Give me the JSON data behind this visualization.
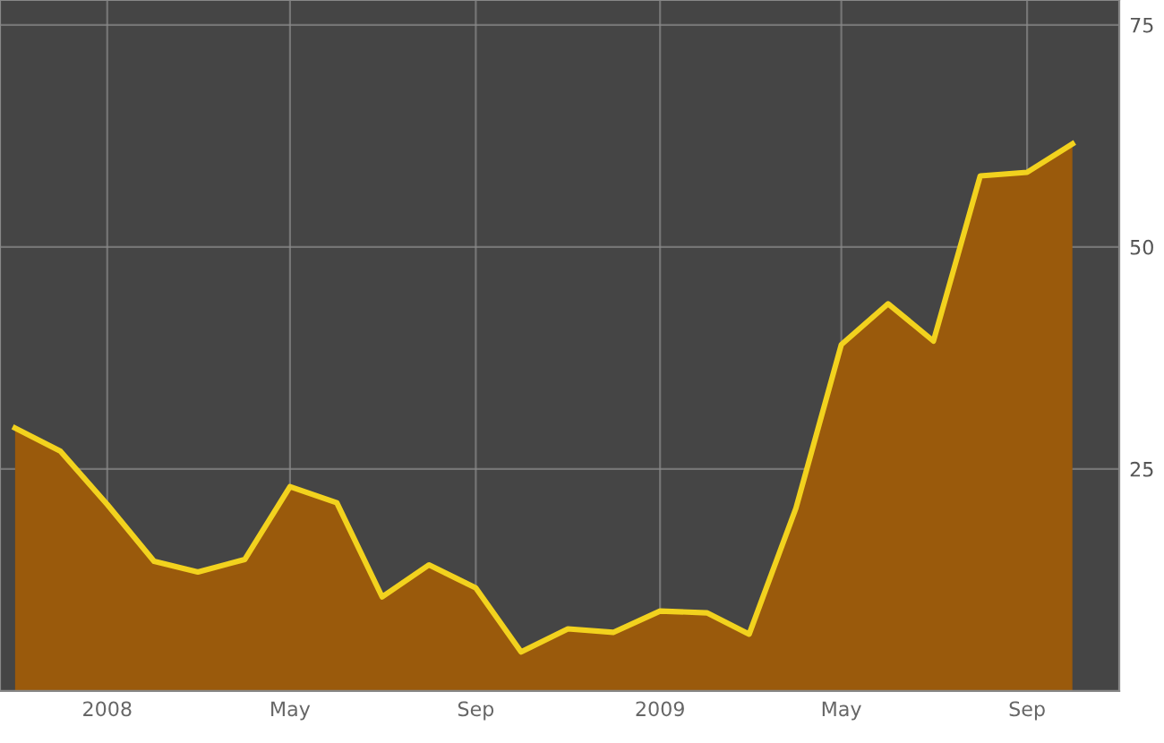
{
  "chart_data": {
    "type": "area",
    "x": [
      "2007-11",
      "2007-12",
      "2008-01",
      "2008-02",
      "2008-03",
      "2008-04",
      "2008-05",
      "2008-06",
      "2008-07",
      "2008-08",
      "2008-09",
      "2008-10",
      "2008-11",
      "2008-12",
      "2009-01",
      "2009-02",
      "2009-03",
      "2009-04",
      "2009-05",
      "2009-06",
      "2009-07",
      "2009-08",
      "2009-09",
      "2009-10"
    ],
    "series": [
      {
        "color": "#f2d21e",
        "values": [
          29.6,
          27,
          21,
          14.6,
          13.4,
          14.8,
          23,
          21.2,
          10.6,
          14.2,
          11.6,
          4.4,
          7,
          6.6,
          9,
          8.8,
          6.4,
          20.6,
          39,
          43.6,
          39.4,
          58,
          58.4,
          61.6
        ]
      }
    ],
    "xlim": [
      "2007-10-22",
      "2009-11-01"
    ],
    "xticks": [
      {
        "value": "2008-01",
        "label": "2008"
      },
      {
        "value": "2008-05",
        "label": "May"
      },
      {
        "value": "2008-09",
        "label": "Sep"
      },
      {
        "value": "2009-01",
        "label": "2009"
      },
      {
        "value": "2009-05",
        "label": "May"
      },
      {
        "value": "2009-09",
        "label": "Sep"
      }
    ],
    "ylim": [
      0,
      77.8
    ],
    "yticks": [
      25,
      50,
      75
    ],
    "grid": true
  }
}
